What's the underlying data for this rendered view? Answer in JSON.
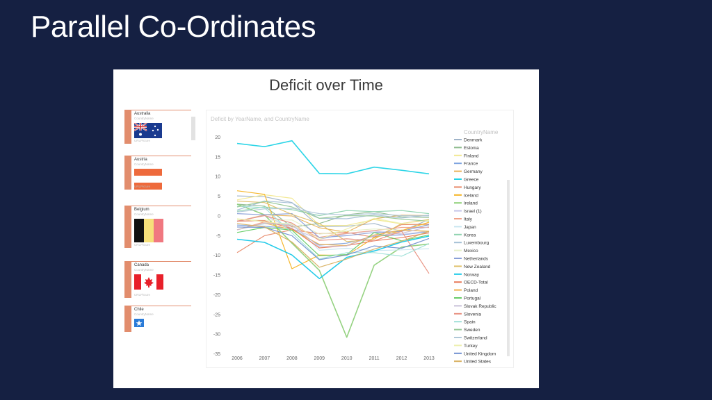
{
  "slide": {
    "title": "Parallel Co-Ordinates"
  },
  "report": {
    "title": "Deficit over Time",
    "chart_subtitle": "Deficit by YearName, and CountryName",
    "slicer": {
      "caption": "CountryName",
      "footer": "URLPicture",
      "items": [
        {
          "name": "Australia",
          "flag": "australia-flag-icon"
        },
        {
          "name": "Austria",
          "flag": "austria-flag-icon"
        },
        {
          "name": "Belgium",
          "flag": "belgium-flag-icon"
        },
        {
          "name": "Canada",
          "flag": "canada-flag-icon"
        },
        {
          "name": "Chile",
          "flag": "chile-flag-icon"
        }
      ]
    }
  },
  "chart_data": {
    "type": "line",
    "x": [
      "2006",
      "2007",
      "2008",
      "2009",
      "2010",
      "2011",
      "2012",
      "2013"
    ],
    "yticks": [
      20,
      15,
      10,
      5,
      0,
      -5,
      -10,
      -15,
      -20,
      -25,
      -30,
      -35
    ],
    "ylim": [
      -35,
      22
    ],
    "grid": false,
    "legend_title": "CountryName",
    "legend_position": "right",
    "series": [
      {
        "name": "Denmark",
        "color": "#9fb3c8",
        "values": [
          5,
          4.8,
          3.3,
          -2.8,
          -2.7,
          -2.0,
          -4.0,
          -1.0
        ]
      },
      {
        "name": "Estonia",
        "color": "#8fbc8f",
        "values": [
          2.9,
          2.4,
          -2.9,
          -2.0,
          0.2,
          1.0,
          -0.3,
          -0.5
        ]
      },
      {
        "name": "Finland",
        "color": "#f2e88f",
        "values": [
          4.0,
          5.3,
          4.4,
          -2.5,
          -2.5,
          -1.0,
          -2.1,
          -2.4
        ]
      },
      {
        "name": "France",
        "color": "#7fa4e0",
        "values": [
          -2.4,
          -2.7,
          -3.3,
          -7.5,
          -7.0,
          -5.2,
          -4.9,
          -4.1
        ]
      },
      {
        "name": "Germany",
        "color": "#e8b25a",
        "values": [
          -1.5,
          0.2,
          -0.1,
          -3.1,
          -4.2,
          -0.8,
          0.1,
          0.0
        ]
      },
      {
        "name": "Greece",
        "color": "#22d3e6",
        "values": [
          18.3,
          17.5,
          19.0,
          10.7,
          10.6,
          12.3,
          11.5,
          10.6
        ]
      },
      {
        "name": "Hungary",
        "color": "#e88a6a",
        "values": [
          -9.4,
          -5.1,
          -3.6,
          -4.6,
          -4.3,
          -5.5,
          -2.3,
          -2.2
        ]
      },
      {
        "name": "Iceland",
        "color": "#f5b321",
        "values": [
          6.3,
          5.4,
          -13.5,
          -10.0,
          -10.1,
          -5.6,
          -3.8,
          -1.7
        ]
      },
      {
        "name": "Ireland",
        "color": "#8fd07a",
        "values": [
          2.9,
          0.2,
          -7.0,
          -13.9,
          -30.9,
          -12.6,
          -8.0,
          -7.2
        ]
      },
      {
        "name": "Israel (1)",
        "color": "#c4c4e8",
        "values": [
          -1.5,
          0.1,
          -3.3,
          -6.0,
          -4.6,
          -3.9,
          -4.8,
          -3.9
        ]
      },
      {
        "name": "Italy",
        "color": "#f0a38a",
        "values": [
          -3.6,
          -1.6,
          -2.7,
          -5.5,
          -4.5,
          -3.8,
          -3.0,
          -3.0
        ]
      },
      {
        "name": "Japan",
        "color": "#c8e6f0",
        "values": [
          -3.6,
          -2.1,
          -1.9,
          -8.8,
          -8.3,
          -8.9,
          -8.7,
          -8.4
        ]
      },
      {
        "name": "Korea",
        "color": "#90d4b0",
        "values": [
          1.1,
          2.2,
          1.5,
          0.0,
          1.3,
          1.0,
          1.3,
          0.5
        ]
      },
      {
        "name": "Luxembourg",
        "color": "#a5c0d6",
        "values": [
          1.4,
          3.7,
          3.2,
          -0.7,
          -0.8,
          0.2,
          -0.6,
          0.1
        ]
      },
      {
        "name": "Mexico",
        "color": "#e6f0c8",
        "values": [
          -1.0,
          -1.2,
          -1.1,
          -4.7,
          -3.9,
          -3.4,
          -3.7,
          -3.9
        ]
      },
      {
        "name": "Netherlands",
        "color": "#8aa0d8",
        "values": [
          0.5,
          0.2,
          0.5,
          -5.6,
          -5.1,
          -4.3,
          -4.0,
          -2.3
        ]
      },
      {
        "name": "New Zealand",
        "color": "#e0c06a",
        "values": [
          3.7,
          3.3,
          0.3,
          -2.0,
          -6.6,
          -6.0,
          -2.0,
          -1.0
        ]
      },
      {
        "name": "Norway",
        "color": "#18c8e8",
        "values": [
          -6.0,
          -6.8,
          -10.0,
          -16.0,
          -10.6,
          -9.0,
          -6.7,
          -5.2
        ]
      },
      {
        "name": "OECD-Total",
        "color": "#e87a5a",
        "values": [
          -1.4,
          -1.3,
          -3.3,
          -8.2,
          -7.6,
          -6.4,
          -5.6,
          -4.4
        ]
      },
      {
        "name": "Poland",
        "color": "#f0b050",
        "values": [
          -3.6,
          -1.9,
          -3.6,
          -7.3,
          -7.6,
          -4.9,
          -3.7,
          -4.0
        ]
      },
      {
        "name": "Portugal",
        "color": "#66cc66",
        "values": [
          -4.3,
          -3.0,
          -3.7,
          -10.2,
          -9.9,
          -4.3,
          -6.4,
          -4.9
        ]
      },
      {
        "name": "Slovak Republic",
        "color": "#c8c0d8",
        "values": [
          -3.6,
          -1.9,
          -2.4,
          -7.9,
          -7.7,
          -5.1,
          -4.5,
          -2.8
        ]
      },
      {
        "name": "Slovenia",
        "color": "#e89080",
        "values": [
          -1.4,
          0.0,
          -1.9,
          -6.3,
          -5.9,
          -6.4,
          -4.0,
          -14.7
        ]
      },
      {
        "name": "Spain",
        "color": "#a0e0d8",
        "values": [
          2.4,
          2.0,
          -4.4,
          -11.0,
          -9.4,
          -9.4,
          -10.3,
          -7.1
        ]
      },
      {
        "name": "Sweden",
        "color": "#98c898",
        "values": [
          2.2,
          3.6,
          2.2,
          -0.7,
          0.0,
          -0.1,
          -0.9,
          -1.4
        ]
      },
      {
        "name": "Switzerland",
        "color": "#b0c8d8",
        "values": [
          0.9,
          1.7,
          1.8,
          0.5,
          0.2,
          0.5,
          0.0,
          -0.1
        ]
      },
      {
        "name": "Turkey",
        "color": "#eef0b0",
        "values": [
          -0.8,
          -1.6,
          -2.2,
          -6.0,
          -3.4,
          -0.7,
          -2.0,
          -1.2
        ]
      },
      {
        "name": "United Kingdom",
        "color": "#7090d0",
        "values": [
          -2.9,
          -3.0,
          -5.1,
          -11.2,
          -10.0,
          -7.7,
          -8.3,
          -5.8
        ]
      },
      {
        "name": "United States",
        "color": "#d8b060",
        "values": [
          -2.0,
          -2.9,
          -6.7,
          -13.1,
          -11.0,
          -8.5,
          -6.5,
          -4.0
        ]
      }
    ]
  }
}
